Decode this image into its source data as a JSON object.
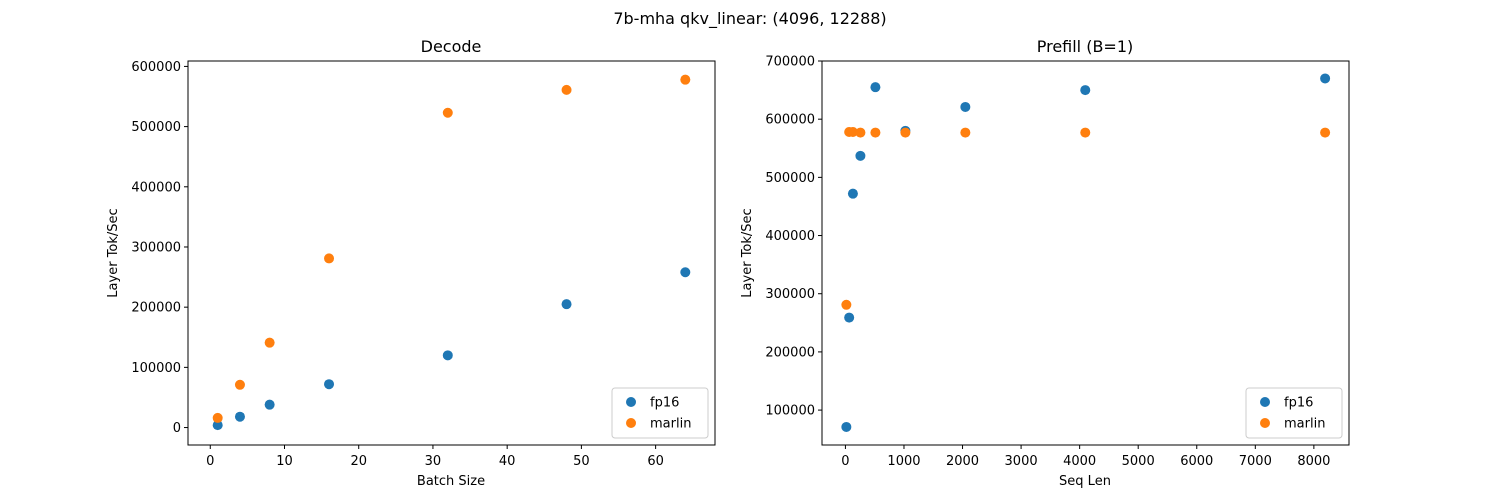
{
  "figure": {
    "suptitle": "7b-mha qkv_linear: (4096, 12288)"
  },
  "colors": {
    "fp16": "#1f77b4",
    "marlin": "#ff7f0e"
  },
  "chart_data": [
    {
      "type": "scatter",
      "title": "Decode",
      "xlabel": "Batch Size",
      "ylabel": "Layer Tok/Sec",
      "xlim": [
        -3,
        68
      ],
      "ylim": [
        -29000,
        609000
      ],
      "xticks": [
        0,
        10,
        20,
        30,
        40,
        50,
        60
      ],
      "yticks": [
        0,
        100000,
        200000,
        300000,
        400000,
        500000,
        600000
      ],
      "grid": false,
      "legend": "lower-right",
      "series": [
        {
          "name": "fp16",
          "color": "#1f77b4",
          "points": [
            [
              1,
              4000
            ],
            [
              4,
              18000
            ],
            [
              8,
              38000
            ],
            [
              16,
              72000
            ],
            [
              32,
              120000
            ],
            [
              48,
              205000
            ],
            [
              64,
              258000
            ]
          ]
        },
        {
          "name": "marlin",
          "color": "#ff7f0e",
          "points": [
            [
              1,
              16000
            ],
            [
              4,
              71000
            ],
            [
              8,
              141000
            ],
            [
              16,
              281000
            ],
            [
              32,
              523000
            ],
            [
              48,
              561000
            ],
            [
              64,
              578000
            ]
          ]
        }
      ]
    },
    {
      "type": "scatter",
      "title": "Prefill (B=1)",
      "xlabel": "Seq Len",
      "ylabel": "Layer Tok/Sec",
      "xlim": [
        -400,
        8600
      ],
      "ylim": [
        40000,
        700000
      ],
      "xticks": [
        0,
        1000,
        2000,
        3000,
        4000,
        5000,
        6000,
        7000,
        8000
      ],
      "yticks": [
        100000,
        200000,
        300000,
        400000,
        500000,
        600000,
        700000
      ],
      "grid": false,
      "legend": "lower-right",
      "series": [
        {
          "name": "fp16",
          "color": "#1f77b4",
          "points": [
            [
              16,
              71000
            ],
            [
              64,
              259000
            ],
            [
              128,
              472000
            ],
            [
              256,
              537000
            ],
            [
              512,
              655000
            ],
            [
              1024,
              580000
            ],
            [
              2048,
              621000
            ],
            [
              4096,
              650000
            ],
            [
              8192,
              670000
            ]
          ]
        },
        {
          "name": "marlin",
          "color": "#ff7f0e",
          "points": [
            [
              16,
              281000
            ],
            [
              64,
              578000
            ],
            [
              128,
              578000
            ],
            [
              256,
              577000
            ],
            [
              512,
              577000
            ],
            [
              1024,
              577000
            ],
            [
              2048,
              577000
            ],
            [
              4096,
              577000
            ],
            [
              8192,
              577000
            ]
          ]
        }
      ]
    }
  ]
}
